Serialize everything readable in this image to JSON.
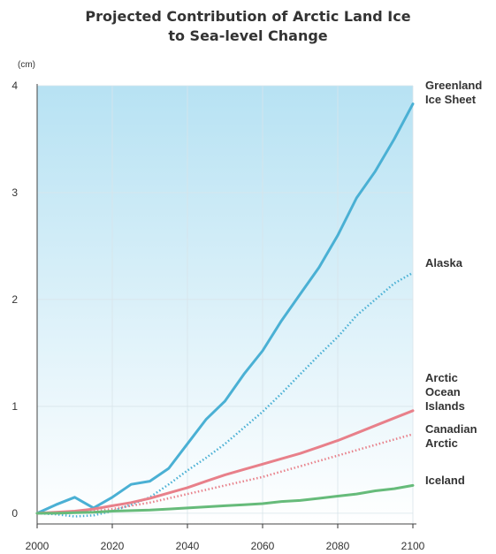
{
  "chart_data": {
    "type": "line",
    "title": [
      "Projected Contribution of Arctic Land Ice",
      "to Sea-level Change"
    ],
    "ylabel": "(cm)",
    "xlabel": "",
    "xlim": [
      2000,
      2100
    ],
    "ylim": [
      -0.1,
      4
    ],
    "xticks": [
      2000,
      2020,
      2040,
      2060,
      2080,
      2100
    ],
    "yticks": [
      0,
      1,
      2,
      3,
      4
    ],
    "grid": true,
    "background": "gradient light-blue top to white bottom",
    "x": [
      2000,
      2005,
      2010,
      2015,
      2020,
      2025,
      2030,
      2035,
      2040,
      2045,
      2050,
      2055,
      2060,
      2065,
      2070,
      2075,
      2080,
      2085,
      2090,
      2095,
      2100
    ],
    "series": [
      {
        "name": [
          "Greenland",
          "Ice Sheet"
        ],
        "color": "#4ab0d4",
        "style": "solid",
        "values": [
          0.0,
          0.08,
          0.15,
          0.05,
          0.15,
          0.27,
          0.3,
          0.42,
          0.65,
          0.88,
          1.05,
          1.3,
          1.52,
          1.8,
          2.05,
          2.3,
          2.6,
          2.95,
          3.2,
          3.5,
          3.83
        ]
      },
      {
        "name": [
          "Alaska"
        ],
        "color": "#4ab0d4",
        "style": "dotted",
        "values": [
          0.0,
          -0.01,
          -0.03,
          -0.02,
          0.02,
          0.08,
          0.15,
          0.27,
          0.4,
          0.52,
          0.65,
          0.8,
          0.95,
          1.12,
          1.3,
          1.48,
          1.65,
          1.85,
          2.0,
          2.15,
          2.25
        ]
      },
      {
        "name": [
          "Arctic",
          "Ocean",
          "Islands"
        ],
        "color": "#e8808a",
        "style": "solid",
        "values": [
          0.0,
          0.01,
          0.02,
          0.04,
          0.07,
          0.1,
          0.14,
          0.19,
          0.24,
          0.3,
          0.36,
          0.41,
          0.46,
          0.51,
          0.56,
          0.62,
          0.68,
          0.75,
          0.82,
          0.89,
          0.96
        ]
      },
      {
        "name": [
          "Canadian",
          "Arctic"
        ],
        "color": "#e8808a",
        "style": "dotted",
        "values": [
          0.0,
          0.005,
          0.01,
          0.02,
          0.04,
          0.07,
          0.1,
          0.14,
          0.18,
          0.22,
          0.26,
          0.3,
          0.34,
          0.39,
          0.44,
          0.49,
          0.54,
          0.59,
          0.64,
          0.69,
          0.74
        ]
      },
      {
        "name": [
          "Iceland"
        ],
        "color": "#66bb7a",
        "style": "solid",
        "values": [
          0.0,
          0.0,
          0.005,
          0.01,
          0.02,
          0.025,
          0.03,
          0.04,
          0.05,
          0.06,
          0.07,
          0.08,
          0.09,
          0.11,
          0.12,
          0.14,
          0.16,
          0.18,
          0.21,
          0.23,
          0.26
        ]
      }
    ]
  }
}
